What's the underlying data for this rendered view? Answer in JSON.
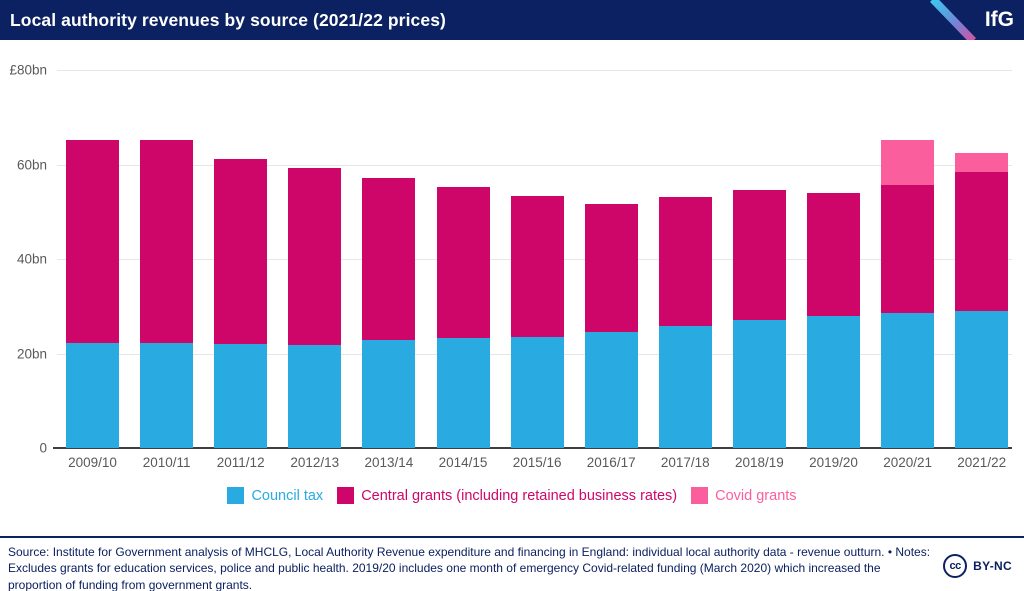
{
  "header": {
    "title": "Local authority revenues by source (2021/22 prices)",
    "logo": "IfG"
  },
  "colors": {
    "header_bg": "#0b2161",
    "council_tax": "#29abe2",
    "central_grants": "#ce0669",
    "covid_grants": "#fb5e9c",
    "grid": "#e7e7e7",
    "axis_line": "#3f3f3f",
    "tick_text": "#595959",
    "footer_text": "#0b2161"
  },
  "chart_data": {
    "type": "bar",
    "stacked": true,
    "title": "Local authority revenues by source (2021/22 prices)",
    "categories": [
      "2009/10",
      "2010/11",
      "2011/12",
      "2012/13",
      "2013/14",
      "2014/15",
      "2015/16",
      "2016/17",
      "2017/18",
      "2018/19",
      "2019/20",
      "2020/21",
      "2021/22"
    ],
    "series": [
      {
        "name": "Council tax",
        "color_key": "council_tax",
        "values": [
          22.3,
          22.3,
          22.0,
          21.8,
          22.9,
          23.2,
          23.5,
          24.6,
          25.8,
          27.0,
          27.9,
          28.5,
          29.0
        ]
      },
      {
        "name": "Central grants (including retained business rates)",
        "color_key": "central_grants",
        "values": [
          42.9,
          42.9,
          39.2,
          37.4,
          34.3,
          32.0,
          29.9,
          27.0,
          27.3,
          27.7,
          26.0,
          27.2,
          29.5
        ]
      },
      {
        "name": "Covid grants",
        "color_key": "covid_grants",
        "values": [
          0,
          0,
          0,
          0,
          0,
          0,
          0,
          0,
          0,
          0,
          0,
          9.4,
          4.0
        ]
      }
    ],
    "xlabel": "",
    "ylabel": "",
    "ylim": [
      0,
      80
    ],
    "yticks": [
      {
        "value": 80,
        "label": "£80bn"
      },
      {
        "value": 60,
        "label": "60bn"
      },
      {
        "value": 40,
        "label": "40bn"
      },
      {
        "value": 20,
        "label": "20bn"
      },
      {
        "value": 0,
        "label": "0"
      }
    ],
    "grid": "horizontal",
    "legend_position": "bottom"
  },
  "footer": {
    "source": "Source: Institute for Government analysis of MHCLG, Local Authority Revenue expenditure and financing in England: individual local authority data - revenue outturn. • Notes: Excludes grants for education services, police and public health. 2019/20 includes one month of emergency Covid-related funding (March 2020) which increased the proportion of funding from government grants.",
    "cc_icon": "cc",
    "license": "BY-NC"
  }
}
